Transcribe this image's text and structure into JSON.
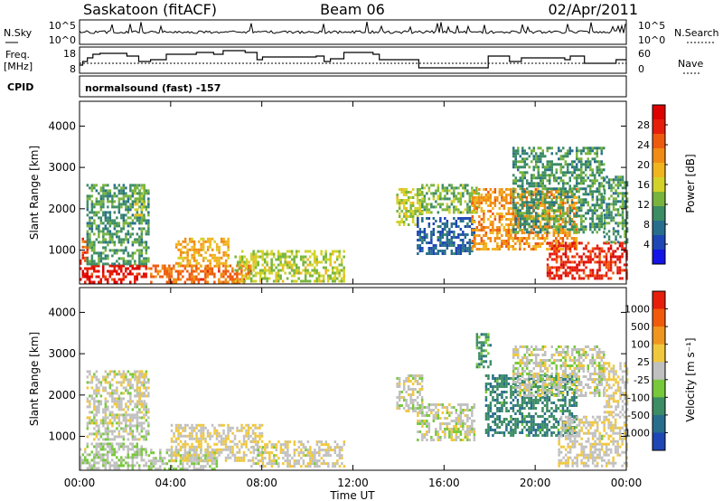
{
  "header": {
    "station": "Saskatoon (fitACF)",
    "beam": "Beam 06",
    "date": "02/Apr/2011"
  },
  "noise_panel": {
    "left_label": "N.Sky",
    "right_label": "N.Search",
    "left_ticks": [
      "10^5",
      "10^0"
    ],
    "right_ticks": [
      "10^5",
      "10^0"
    ]
  },
  "freq_panel": {
    "label_line1": "Freq.",
    "label_line2": "[MHz]",
    "left_ticks": [
      "18",
      "8"
    ],
    "right_ticks": [
      "60",
      "0"
    ],
    "right_label": "Nave"
  },
  "cpid": {
    "label": "CPID",
    "value": "normalsound (fast) -157"
  },
  "chart_data": [
    {
      "type": "heatmap",
      "panel": "power",
      "ylabel": "Slant Range [km]",
      "xlabel": "",
      "x_ticks": [
        "00:00",
        "04:00",
        "08:00",
        "12:00",
        "16:00",
        "20:00",
        "00:00"
      ],
      "y_ticks": [
        "1000",
        "2000",
        "3000",
        "4000"
      ],
      "xlim_hours": [
        0,
        24
      ],
      "ylim_km": [
        180,
        4600
      ],
      "colorbar": {
        "label": "Power [dB]",
        "ticks": [
          "28",
          "24",
          "20",
          "16",
          "12",
          "8",
          "4"
        ],
        "range": [
          0,
          30
        ],
        "colors": [
          "#1414e6",
          "#1e46b4",
          "#286e8c",
          "#3c8c64",
          "#78b43c",
          "#d2d228",
          "#f0b41e",
          "#f08c14",
          "#ee5a0e",
          "#e61e0a",
          "#dc0000"
        ]
      },
      "regions": [
        {
          "t0": 0.0,
          "t1": 2.9,
          "r0": 200,
          "r1": 650,
          "value": 27
        },
        {
          "t0": 0.0,
          "t1": 0.3,
          "r0": 700,
          "r1": 1300,
          "value": 24
        },
        {
          "t0": 0.3,
          "t1": 3.0,
          "r0": 650,
          "r1": 2600,
          "value": 10
        },
        {
          "t0": 2.4,
          "t1": 2.8,
          "r0": 1800,
          "r1": 2600,
          "value": 14
        },
        {
          "t0": 3.0,
          "t1": 7.5,
          "r0": 200,
          "r1": 650,
          "value": 22
        },
        {
          "t0": 4.2,
          "t1": 6.5,
          "r0": 600,
          "r1": 1300,
          "value": 18
        },
        {
          "t0": 6.8,
          "t1": 11.6,
          "r0": 250,
          "r1": 1000,
          "value": 14
        },
        {
          "t0": 13.9,
          "t1": 15.0,
          "r0": 1600,
          "r1": 2500,
          "value": 14
        },
        {
          "t0": 14.8,
          "t1": 17.3,
          "r0": 900,
          "r1": 1800,
          "value": 6
        },
        {
          "t0": 15.0,
          "t1": 17.5,
          "r0": 1900,
          "r1": 2600,
          "value": 12
        },
        {
          "t0": 17.2,
          "t1": 21.8,
          "r0": 1000,
          "r1": 2500,
          "value": 20
        },
        {
          "t0": 19.0,
          "t1": 23.0,
          "r0": 1400,
          "r1": 3500,
          "value": 10
        },
        {
          "t0": 20.5,
          "t1": 24.0,
          "r0": 300,
          "r1": 1200,
          "value": 26
        },
        {
          "t0": 23.0,
          "t1": 24.0,
          "r0": 1200,
          "r1": 2800,
          "value": 10
        }
      ]
    },
    {
      "type": "heatmap",
      "panel": "velocity",
      "ylabel": "Slant Range [km]",
      "xlabel": "Time UT",
      "x_ticks": [
        "00:00",
        "04:00",
        "08:00",
        "12:00",
        "16:00",
        "20:00",
        "00:00"
      ],
      "y_ticks": [
        "1000",
        "2000",
        "3000",
        "4000"
      ],
      "xlim_hours": [
        0,
        24
      ],
      "ylim_km": [
        180,
        4600
      ],
      "colorbar": {
        "label": "Velocity [m s⁻¹]",
        "ticks": [
          "1000",
          "500",
          "100",
          "25",
          "-25",
          "-100",
          "-500",
          "-1000"
        ],
        "range": [
          -1200,
          1200
        ],
        "colors": [
          "#1e46b4",
          "#286e8c",
          "#3c8c64",
          "#78c83c",
          "#c0c0c0",
          "#f0c83c",
          "#f0961e",
          "#f05a0a",
          "#e61e0a"
        ]
      },
      "regions": [
        {
          "t0": 0.0,
          "t1": 2.9,
          "r0": 200,
          "r1": 850,
          "value": -80
        },
        {
          "t0": 0.3,
          "t1": 3.0,
          "r0": 900,
          "r1": 2600,
          "value": 0
        },
        {
          "t0": 2.4,
          "t1": 2.8,
          "r0": 1800,
          "r1": 2600,
          "value": 150
        },
        {
          "t0": 3.0,
          "t1": 6.0,
          "r0": 200,
          "r1": 700,
          "value": -90
        },
        {
          "t0": 4.0,
          "t1": 8.0,
          "r0": 400,
          "r1": 1300,
          "value": 120
        },
        {
          "t0": 7.5,
          "t1": 11.6,
          "r0": 250,
          "r1": 900,
          "value": 60
        },
        {
          "t0": 13.9,
          "t1": 15.0,
          "r0": 1600,
          "r1": 2500,
          "value": 0
        },
        {
          "t0": 14.8,
          "t1": 17.3,
          "r0": 900,
          "r1": 1800,
          "value": 0
        },
        {
          "t0": 17.4,
          "t1": 18.0,
          "r0": 2700,
          "r1": 3500,
          "value": -500
        },
        {
          "t0": 17.8,
          "t1": 21.8,
          "r0": 1000,
          "r1": 2500,
          "value": -600
        },
        {
          "t0": 19.0,
          "t1": 23.0,
          "r0": 2000,
          "r1": 3200,
          "value": 0
        },
        {
          "t0": 21.0,
          "t1": 24.0,
          "r0": 300,
          "r1": 1500,
          "value": 80
        },
        {
          "t0": 23.0,
          "t1": 24.0,
          "r0": 1500,
          "r1": 2800,
          "value": 100
        }
      ]
    }
  ]
}
